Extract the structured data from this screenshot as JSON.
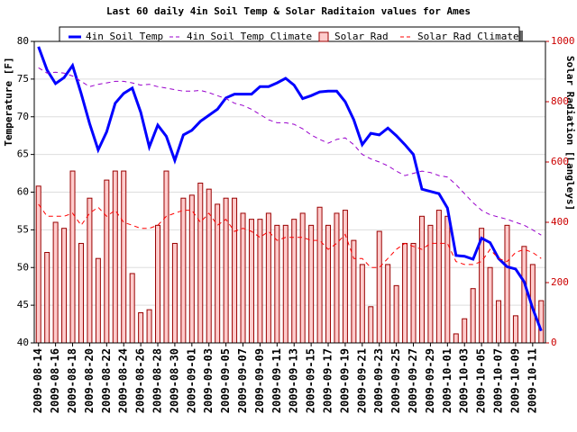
{
  "chart_data": {
    "type": "combo",
    "title": "Last 60 daily 4in Soil Temp & Solar Raditaion values for  Ames",
    "y_label": "Temperature [F]",
    "y2_label": "Solar Radiation [Langleys]",
    "categories": [
      "2009-08-14",
      null,
      "2009-08-16",
      null,
      "2009-08-18",
      null,
      "2009-08-20",
      null,
      "2009-08-22",
      null,
      "2009-08-24",
      null,
      "2009-08-26",
      null,
      "2009-08-28",
      null,
      "2009-08-30",
      null,
      "2009-09-01",
      null,
      "2009-09-03",
      null,
      "2009-09-05",
      null,
      "2009-09-07",
      null,
      "2009-09-09",
      null,
      "2009-09-11",
      null,
      "2009-09-13",
      null,
      "2009-09-15",
      null,
      "2009-09-17",
      null,
      "2009-09-19",
      null,
      "2009-09-21",
      null,
      "2009-09-23",
      null,
      "2009-09-25",
      null,
      "2009-09-27",
      null,
      "2009-09-29",
      null,
      "2009-10-01",
      null,
      "2009-10-03",
      null,
      "2009-10-05",
      null,
      "2009-10-07",
      null,
      "2009-10-09",
      null,
      "2009-10-11",
      null
    ],
    "ylim": [
      40,
      80
    ],
    "yticks": [
      40,
      45,
      50,
      55,
      60,
      65,
      70,
      75,
      80
    ],
    "y2lim": [
      0,
      1000
    ],
    "y2ticks": [
      0,
      200,
      400,
      600,
      800,
      1000
    ],
    "grid": true,
    "series": [
      {
        "name": "4in Soil Temp",
        "type": "line",
        "color": "#0000ff",
        "values": [
          79.3,
          76.2,
          74.4,
          75.2,
          76.8,
          73.1,
          69.1,
          65.6,
          68,
          71.8,
          73.1,
          73.8,
          70.6,
          66,
          68.9,
          67.4,
          64.2,
          67.6,
          68.2,
          69.4,
          70.2,
          71,
          72.5,
          73,
          73,
          73,
          74,
          74,
          74.5,
          75.1,
          74.2,
          72.4,
          72.8,
          73.3,
          73.4,
          73.4,
          72,
          69.6,
          66.3,
          67.8,
          67.6,
          68.5,
          67.5,
          66.3,
          65,
          60.4,
          60.1,
          59.8,
          57.9,
          51.6,
          51.5,
          51.1,
          53.9,
          53.3,
          51.2,
          50.1,
          49.8,
          48.1,
          44.6,
          41.6
        ]
      },
      {
        "name": "4in Soil Temp Climate",
        "type": "line",
        "dashed": true,
        "color": "#9900cc",
        "values": [
          76.5,
          75.8,
          75.9,
          75.8,
          75.4,
          74.7,
          74,
          74.3,
          74.5,
          74.7,
          74.7,
          74.5,
          74.2,
          74.3,
          74,
          73.8,
          73.6,
          73.4,
          73.4,
          73.5,
          73.2,
          72.8,
          72.4,
          71.8,
          71.5,
          71,
          70.3,
          69.6,
          69.2,
          69.2,
          69,
          68.4,
          67.6,
          67,
          66.5,
          67,
          67.2,
          66.3,
          65,
          64.4,
          64,
          63.5,
          62.8,
          62.2,
          62.5,
          62.8,
          62.6,
          62.2,
          62,
          61,
          59.8,
          58.6,
          57.6,
          57,
          56.7,
          56.4,
          56,
          55.6,
          55,
          54.3
        ]
      },
      {
        "name": "Solar Rad",
        "type": "bar",
        "axis": "y2",
        "color": "#ffcccc",
        "values": [
          520,
          300,
          400,
          380,
          570,
          330,
          480,
          280,
          540,
          570,
          570,
          230,
          100,
          110,
          390,
          570,
          330,
          480,
          490,
          530,
          510,
          460,
          480,
          480,
          430,
          410,
          410,
          430,
          390,
          390,
          410,
          430,
          390,
          450,
          390,
          430,
          440,
          340,
          260,
          120,
          370,
          260,
          190,
          330,
          330,
          420,
          390,
          440,
          420,
          30,
          80,
          180,
          380,
          250,
          140,
          390,
          90,
          320,
          260,
          140
        ]
      },
      {
        "name": "Solar Rad Climate",
        "type": "line",
        "dashed": true,
        "axis": "y2",
        "color": "#ff0000",
        "values": [
          460,
          420,
          420,
          420,
          430,
          390,
          430,
          450,
          420,
          440,
          400,
          390,
          380,
          380,
          390,
          420,
          430,
          440,
          440,
          400,
          430,
          390,
          410,
          370,
          380,
          370,
          350,
          370,
          340,
          350,
          350,
          350,
          340,
          340,
          310,
          330,
          360,
          280,
          280,
          250,
          250,
          280,
          310,
          330,
          320,
          310,
          330,
          330,
          330,
          270,
          260,
          260,
          270,
          310,
          280,
          270,
          300,
          310,
          300,
          280
        ]
      }
    ]
  }
}
